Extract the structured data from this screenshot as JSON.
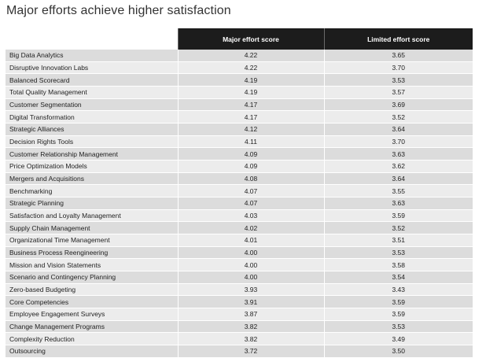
{
  "title": "Major efforts achieve higher satisfaction",
  "table": {
    "columns": [
      "",
      "Major effort score",
      "Limited effort score"
    ],
    "rows": [
      {
        "tool": "Big Data Analytics",
        "major": "4.22",
        "limited": "3.65"
      },
      {
        "tool": "Disruptive Innovation Labs",
        "major": "4.22",
        "limited": "3.70"
      },
      {
        "tool": "Balanced Scorecard",
        "major": "4.19",
        "limited": "3.53"
      },
      {
        "tool": "Total Quality Management",
        "major": "4.19",
        "limited": "3.57"
      },
      {
        "tool": "Customer Segmentation",
        "major": "4.17",
        "limited": "3.69"
      },
      {
        "tool": "Digital Transformation",
        "major": "4.17",
        "limited": "3.52"
      },
      {
        "tool": "Strategic Alliances",
        "major": "4.12",
        "limited": "3.64"
      },
      {
        "tool": "Decision Rights Tools",
        "major": "4.11",
        "limited": "3.70"
      },
      {
        "tool": "Customer Relationship Management",
        "major": "4.09",
        "limited": "3.63"
      },
      {
        "tool": "Price Optimization Models",
        "major": "4.09",
        "limited": "3.62"
      },
      {
        "tool": "Mergers and Acquisitions",
        "major": "4.08",
        "limited": "3.64"
      },
      {
        "tool": "Benchmarking",
        "major": "4.07",
        "limited": "3.55"
      },
      {
        "tool": "Strategic Planning",
        "major": "4.07",
        "limited": "3.63"
      },
      {
        "tool": "Satisfaction and Loyalty Management",
        "major": "4.03",
        "limited": "3.59"
      },
      {
        "tool": "Supply Chain Management",
        "major": "4.02",
        "limited": "3.52"
      },
      {
        "tool": "Organizational Time Management",
        "major": "4.01",
        "limited": "3.51"
      },
      {
        "tool": "Business Process Reengineering",
        "major": "4.00",
        "limited": "3.53"
      },
      {
        "tool": "Mission and Vision Statements",
        "major": "4.00",
        "limited": "3.58"
      },
      {
        "tool": "Scenario and Contingency Planning",
        "major": "4.00",
        "limited": "3.54"
      },
      {
        "tool": "Zero-based Budgeting",
        "major": "3.93",
        "limited": "3.43"
      },
      {
        "tool": "Core Competencies",
        "major": "3.91",
        "limited": "3.59"
      },
      {
        "tool": "Employee Engagement Surveys",
        "major": "3.87",
        "limited": "3.59"
      },
      {
        "tool": "Change Management Programs",
        "major": "3.82",
        "limited": "3.53"
      },
      {
        "tool": "Complexity Reduction",
        "major": "3.82",
        "limited": "3.49"
      },
      {
        "tool": "Outsourcing",
        "major": "3.72",
        "limited": "3.50"
      }
    ]
  }
}
